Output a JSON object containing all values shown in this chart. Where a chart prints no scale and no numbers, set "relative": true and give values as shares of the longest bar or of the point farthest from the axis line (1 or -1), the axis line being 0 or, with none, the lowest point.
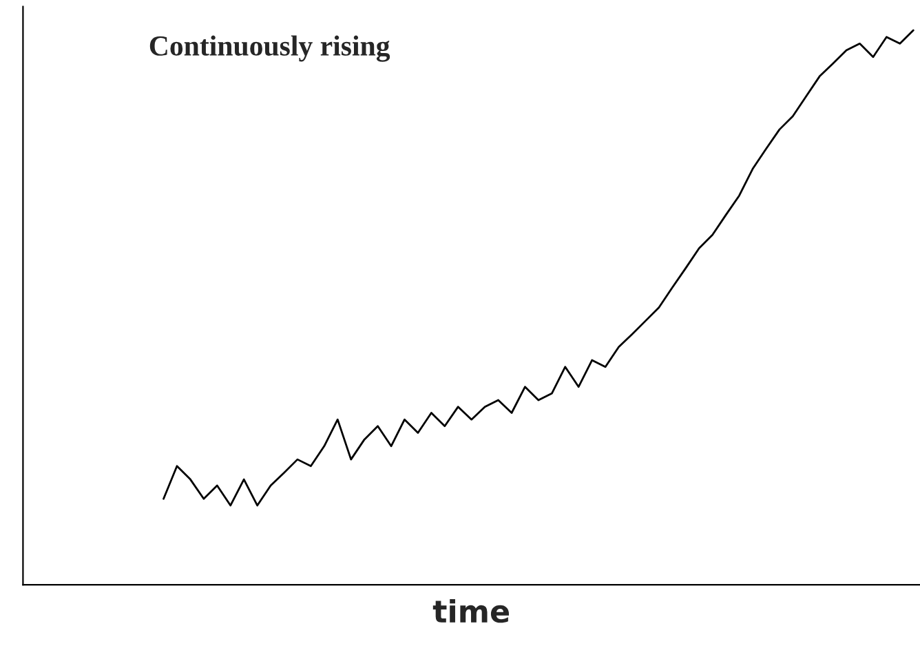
{
  "chart_data": {
    "type": "line",
    "relative": true,
    "xlabel": "time",
    "annotations": [
      "Continuously rising"
    ],
    "categories": [
      null,
      null,
      null,
      null,
      null,
      null,
      null,
      null,
      null,
      null,
      null,
      null,
      null,
      null,
      null,
      null,
      null,
      null,
      null,
      null,
      null,
      null,
      null,
      null,
      null,
      null,
      null,
      null,
      null,
      null,
      null,
      null,
      null,
      null,
      null,
      null,
      null,
      null,
      null,
      null,
      null,
      null,
      null,
      null,
      null,
      null,
      null,
      null,
      null,
      null,
      null,
      null,
      null,
      null,
      null,
      null,
      null,
      null,
      null,
      null,
      null,
      null,
      null,
      null,
      null,
      null,
      null
    ],
    "series": [
      {
        "color": "#000000",
        "values": [
          null,
          null,
          null,
          null,
          null,
          null,
          null,
          null,
          null,
          null,
          0.155,
          0.214,
          0.19,
          0.155,
          0.179,
          0.143,
          0.19,
          0.143,
          0.179,
          0.202,
          0.226,
          0.214,
          0.25,
          0.298,
          0.226,
          0.262,
          0.286,
          0.25,
          0.298,
          0.274,
          0.31,
          0.286,
          0.321,
          0.298,
          0.321,
          0.333,
          0.31,
          0.357,
          0.333,
          0.345,
          0.393,
          0.357,
          0.405,
          0.393,
          0.429,
          0.452,
          0.476,
          0.5,
          0.536,
          0.571,
          0.607,
          0.631,
          0.667,
          0.702,
          0.75,
          0.786,
          0.821,
          0.845,
          0.881,
          0.917,
          0.94,
          0.964,
          0.976,
          0.952,
          0.988,
          0.976,
          1.0
        ]
      }
    ],
    "grid": false,
    "legend": false
  }
}
